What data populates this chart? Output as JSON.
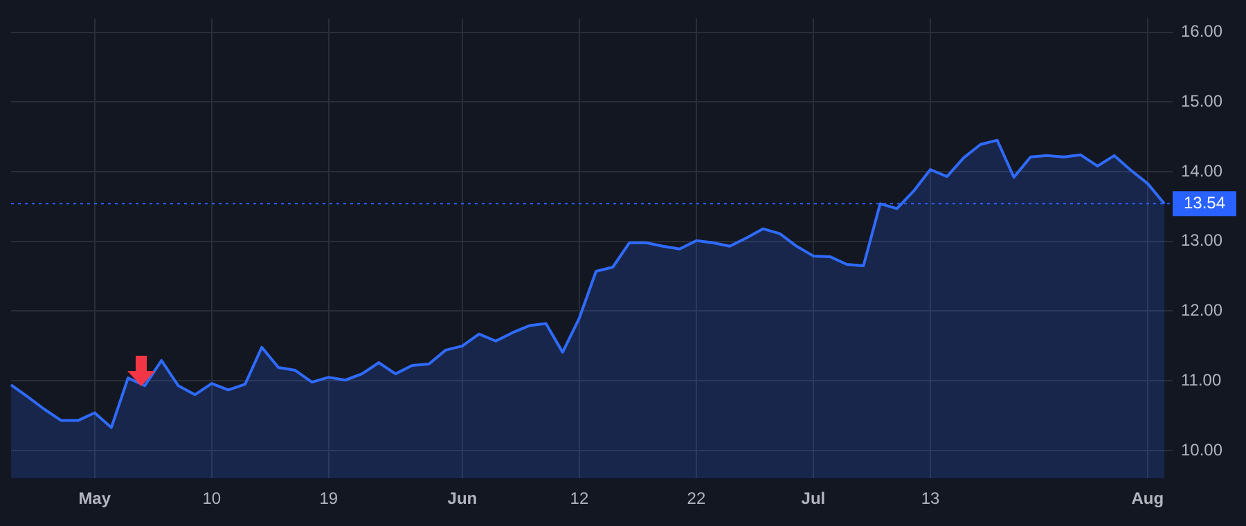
{
  "chart_data": {
    "type": "area",
    "categories": [
      null,
      null,
      null,
      null,
      null,
      "May",
      null,
      null,
      null,
      null,
      null,
      null,
      "10",
      null,
      null,
      null,
      null,
      null,
      null,
      "19",
      null,
      null,
      null,
      null,
      null,
      null,
      null,
      "Jun",
      null,
      null,
      null,
      null,
      null,
      null,
      "12",
      null,
      null,
      null,
      null,
      null,
      null,
      "22",
      null,
      null,
      null,
      null,
      null,
      null,
      "Jul",
      null,
      null,
      null,
      null,
      null,
      null,
      "13",
      null,
      null,
      null,
      null,
      null,
      null,
      null,
      null,
      null,
      null,
      null,
      null,
      "Aug",
      null
    ],
    "series": [
      {
        "color": "#2f6bff",
        "values": [
          10.94,
          10.77,
          10.59,
          10.43,
          10.43,
          10.54,
          10.33,
          11.04,
          10.93,
          11.29,
          10.93,
          10.8,
          10.96,
          10.87,
          10.95,
          11.48,
          11.19,
          11.15,
          10.98,
          11.05,
          11.01,
          11.1,
          11.26,
          11.1,
          11.22,
          11.24,
          11.44,
          11.5,
          11.67,
          11.57,
          11.69,
          11.79,
          11.82,
          11.41,
          11.9,
          12.57,
          12.63,
          12.98,
          12.98,
          12.93,
          12.89,
          13.01,
          12.98,
          12.93,
          13.05,
          13.18,
          13.11,
          12.93,
          12.79,
          12.78,
          12.67,
          12.65,
          13.54,
          13.47,
          13.72,
          14.03,
          13.93,
          14.2,
          14.39,
          14.45,
          13.92,
          14.21,
          14.23,
          14.21,
          14.24,
          14.08,
          14.23,
          14.02,
          13.83,
          13.54
        ]
      }
    ],
    "ylim": [
      9.6,
      16.2
    ],
    "yticks": [
      {
        "value": 10,
        "label": "10.00"
      },
      {
        "value": 11,
        "label": "11.00"
      },
      {
        "value": 12,
        "label": "12.00"
      },
      {
        "value": 13,
        "label": "13.00"
      },
      {
        "value": 14,
        "label": "14.00"
      },
      {
        "value": 15,
        "label": "15.00"
      },
      {
        "value": 16,
        "label": "16.00"
      }
    ],
    "ref_lines": [
      {
        "axis": "y",
        "value": 13.54,
        "label": "13.54",
        "color": "#2962ff",
        "line_style": "dotted"
      }
    ],
    "grid": true,
    "legend": false,
    "marker": "none",
    "line_style": "solid"
  }
}
